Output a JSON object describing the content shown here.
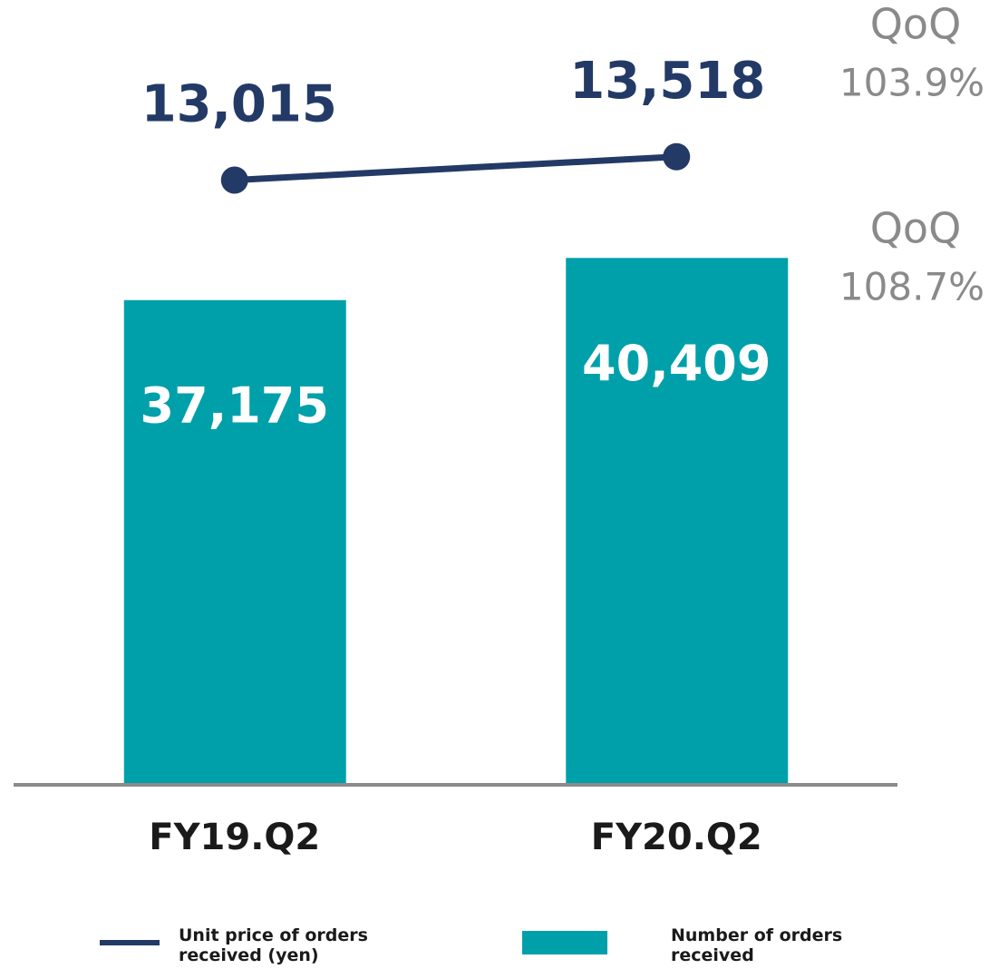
{
  "chart_data": {
    "type": "bar",
    "categories": [
      "FY19.Q2",
      "FY20.Q2"
    ],
    "series": [
      {
        "name": "Unit price of orders received (yen)",
        "type": "line",
        "axis": "y2",
        "color": "#233a66",
        "values": [
          13015,
          13518
        ],
        "value_labels": [
          "13,015",
          "13,518"
        ]
      },
      {
        "name": "Number of orders received",
        "type": "bar",
        "color": "#00a0ab",
        "values": [
          37175,
          40409
        ],
        "value_labels": [
          "37,175",
          "40,409"
        ]
      }
    ],
    "ylim": [
      0,
      58800
    ],
    "y2lim": [
      0,
      16500
    ],
    "annotations": [
      [
        "QoQ",
        "103.9%"
      ],
      [
        "QoQ",
        "108.7%"
      ]
    ]
  }
}
